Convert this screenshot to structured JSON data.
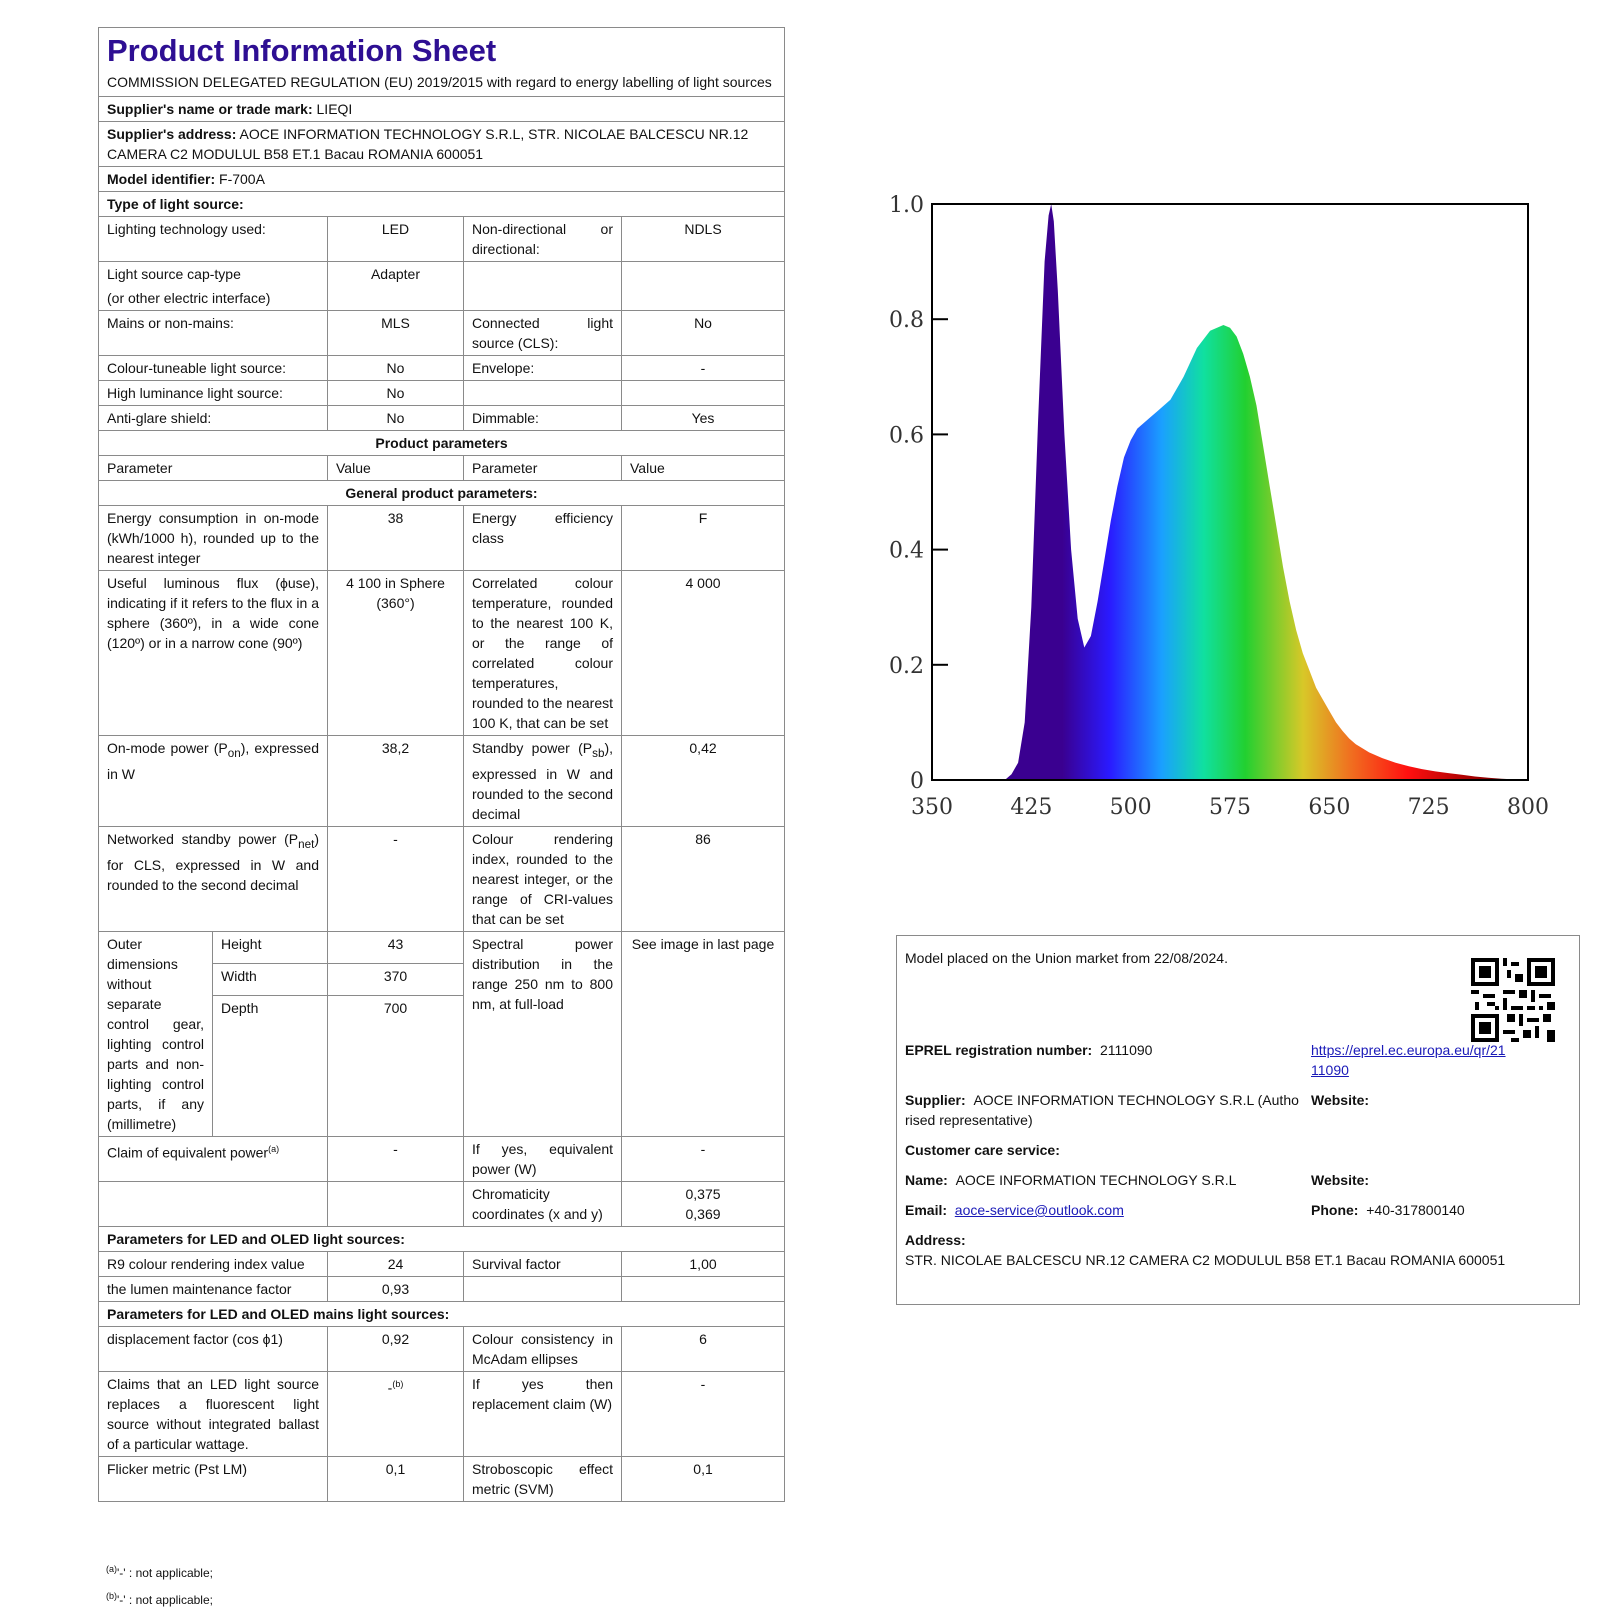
{
  "sheet": {
    "title": "Product Information Sheet",
    "subtitle": "COMMISSION DELEGATED REGULATION (EU) 2019/2015 with regard to energy labelling of light sources",
    "supplier_name_label": "Supplier's name or trade mark:",
    "supplier_name": "LIEQI",
    "supplier_address_label": "Supplier's address:",
    "supplier_address": "AOCE INFORMATION TECHNOLOGY S.R.L, STR. NICOLAE BALCESCU NR.12 CAMERA C2 MODULUL B58 ET.1 Bacau ROMANIA 600051",
    "model_label": "Model identifier:",
    "model": "F-700A",
    "type_label": "Type of light source:",
    "rows": {
      "lighting_tech": {
        "label": "Lighting technology used:",
        "value": "LED",
        "label2": "Non-directional or directional:",
        "value2": "NDLS"
      },
      "cap_type": {
        "label": "Light source cap-type",
        "label_b": "(or other electric interface)",
        "value": "Adapter"
      },
      "mains": {
        "label": "Mains or non-mains:",
        "value": "MLS",
        "label2": "Connected light source (CLS):",
        "value2": "No"
      },
      "tuneable": {
        "label": "Colour-tuneable light source:",
        "value": "No",
        "label2": "Envelope:",
        "value2": "-"
      },
      "high_lum": {
        "label": "High luminance light source:",
        "value": "No"
      },
      "anti_glare": {
        "label": "Anti-glare shield:",
        "value": "No",
        "label2": "Dimmable:",
        "value2": "Yes"
      }
    },
    "product_params": "Product parameters",
    "col_parameter": "Parameter",
    "col_value": "Value",
    "col_parameter2": "Parameter",
    "col_value2": "Value",
    "general_params": "General product parameters:",
    "energy": {
      "label": "Energy consumption in on-mode (kWh/1000 h), rounded up to the nearest integer",
      "value": "38",
      "label2": "Energy efficiency class",
      "value2": "F"
    },
    "flux": {
      "label": "Useful luminous flux (ϕuse), indicating if it refers to the flux in a sphere (360º), in a wide cone (120º) or in a narrow cone (90º)",
      "value": "4 100 in Sphere (360°)",
      "label2": "Correlated colour temperature, rounded to the nearest 100 K, or the range of correlated colour temperatures, rounded to the nearest 100 K, that can be set",
      "value2": "4 000"
    },
    "onmode_power": {
      "label_a": "On-mode power (P",
      "label_sub": "on",
      "label_b": "), expressed in W",
      "value": "38,2",
      "label2_a": "Standby power (P",
      "label2_sub": "sb",
      "label2_b": "), expressed in W and rounded to the second decimal",
      "value2": "0,42"
    },
    "networked": {
      "label_a": "Networked standby power (P",
      "label_sub": "net",
      "label_b": ") for CLS, expressed in W and rounded to the second decimal",
      "value": "-",
      "label2": "Colour rendering index, rounded to the nearest integer, or the range of CRI-values that can be set",
      "value2": "86"
    },
    "dimensions": {
      "label": "Outer dimensions without separate control gear, lighting control parts and non-lighting control parts, if any (millimetre)",
      "height_label": "Height",
      "height": "43",
      "width_label": "Width",
      "width": "370",
      "depth_label": "Depth",
      "depth": "700",
      "label2": "Spectral power distribution in the range 250 nm to 800 nm, at full-load",
      "value2": "See image in last page"
    },
    "equiv_power": {
      "label": "Claim of equivalent power",
      "sup": "(a)",
      "value": "-",
      "label2": "If yes, equivalent power (W)",
      "value2": "-"
    },
    "chromaticity": {
      "label2": "Chromaticity coordinates (x and y)",
      "x": "0,375",
      "y": "0,369"
    },
    "led_params": "Parameters for LED and OLED light sources:",
    "r9": {
      "label": "R9 colour rendering index value",
      "value": "24",
      "label2": "Survival factor",
      "value2": "1,00"
    },
    "lumen": {
      "label": "the lumen maintenance factor",
      "value": "0,93"
    },
    "led_mains_params": "Parameters for LED and OLED mains light sources:",
    "displacement": {
      "label": "displacement factor (cos ϕ1)",
      "value": "0,92",
      "label2": "Colour consistency in McAdam ellipses",
      "value2": "6"
    },
    "claims": {
      "label": "Claims that an LED light source replaces a fluorescent light source without integrated ballast of a particular wattage.",
      "value": "-",
      "value_sup": "(b)",
      "label2": "If yes then replacement claim (W)",
      "value2": "-"
    },
    "flicker": {
      "label": "Flicker metric (Pst LM)",
      "value": "0,1",
      "label2": "Stroboscopic effect metric (SVM)",
      "value2": "0,1"
    }
  },
  "footnotes": [
    {
      "sup": "(a)",
      "text": "'-' : not applicable;"
    },
    {
      "sup": "(b)",
      "text": "'-' : not applicable;"
    }
  ],
  "chart_data": {
    "type": "area",
    "xlim": [
      350,
      800
    ],
    "ylim": [
      0,
      1.0
    ],
    "x_ticks": [
      "350",
      "425",
      "500",
      "575",
      "650",
      "725",
      "800"
    ],
    "y_ticks": [
      "0",
      "0.2",
      "0.4",
      "0.6",
      "0.8",
      "1.0"
    ],
    "title": "",
    "xlabel": "",
    "ylabel": "",
    "grid": false,
    "x": [
      405,
      410,
      415,
      420,
      425,
      430,
      435,
      438,
      440,
      442,
      445,
      450,
      455,
      460,
      465,
      470,
      475,
      480,
      485,
      490,
      495,
      500,
      505,
      510,
      515,
      520,
      530,
      540,
      550,
      560,
      570,
      575,
      580,
      585,
      590,
      595,
      600,
      605,
      610,
      615,
      620,
      625,
      630,
      635,
      640,
      645,
      650,
      655,
      660,
      665,
      670,
      675,
      680,
      690,
      700,
      710,
      720,
      730,
      740,
      750,
      760,
      770,
      780,
      800
    ],
    "y": [
      0.0,
      0.01,
      0.03,
      0.1,
      0.3,
      0.62,
      0.9,
      0.98,
      1.0,
      0.97,
      0.85,
      0.6,
      0.4,
      0.28,
      0.23,
      0.25,
      0.31,
      0.38,
      0.45,
      0.51,
      0.56,
      0.59,
      0.61,
      0.62,
      0.63,
      0.64,
      0.66,
      0.7,
      0.75,
      0.78,
      0.79,
      0.785,
      0.77,
      0.74,
      0.7,
      0.65,
      0.58,
      0.51,
      0.44,
      0.37,
      0.31,
      0.26,
      0.22,
      0.19,
      0.16,
      0.14,
      0.12,
      0.1,
      0.085,
      0.072,
      0.062,
      0.055,
      0.048,
      0.038,
      0.03,
      0.024,
      0.019,
      0.015,
      0.012,
      0.009,
      0.006,
      0.004,
      0.002,
      0.0
    ]
  },
  "info": {
    "market_text": "Model placed on the Union market from 22/08/2024.",
    "eprel_label": "EPREL registration number:",
    "eprel_number": "2111090",
    "eprel_url_line1": "https://eprel.ec.europa.eu/qr/21",
    "eprel_url_line2": "11090",
    "supplier_label": "Supplier:",
    "supplier_line1": "AOCE INFORMATION TECHNOLOGY S.R.L (Autho",
    "supplier_line2": "rised representative)",
    "website_label": "Website:",
    "customer_care_label": "Customer care service:",
    "name_label": "Name:",
    "name": "AOCE INFORMATION TECHNOLOGY S.R.L",
    "website_label2": "Website:",
    "email_label": "Email:",
    "email": "aoce-service@outlook.com",
    "phone_label": "Phone:",
    "phone": "+40-317800140",
    "address_label": "Address:",
    "address": "STR. NICOLAE BALCESCU NR.12 CAMERA C2 MODULUL B58 ET.1 Bacau ROMANIA 600051",
    "qr_icon": "qr-code-icon"
  }
}
